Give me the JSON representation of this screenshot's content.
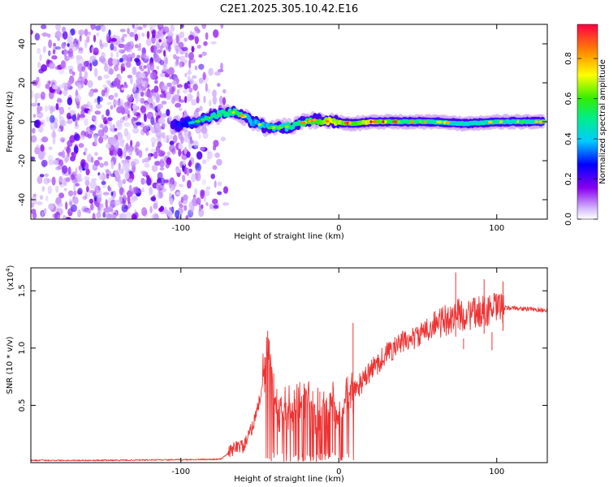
{
  "title": "C2E1.2025.305.10.42.E16",
  "chart_data": [
    {
      "type": "heatmap",
      "xlabel": "Height of straight line (km)",
      "ylabel": "Frequency (Hz)",
      "xlim": [
        -195,
        132
      ],
      "ylim": [
        -50,
        50
      ],
      "xticks": [
        -100,
        0,
        100
      ],
      "yticks": [
        40,
        20,
        0,
        -20,
        -40
      ],
      "xtick_labels": [
        "-100",
        "0",
        "100"
      ],
      "ytick_labels": [
        "40",
        "20",
        "0",
        "-20",
        "-40"
      ],
      "colorbar": {
        "label": "Normalized spectral amplitude",
        "range": [
          0,
          0.97
        ],
        "ticks": [
          "0.0",
          "0.2",
          "0.4",
          "0.6",
          "0.8"
        ],
        "tick_values": [
          0.0,
          0.2,
          0.4,
          0.6,
          0.8
        ]
      },
      "noise_region_km": [
        -195,
        -75
      ],
      "signal_ridge": [
        {
          "x": -105,
          "y": -2,
          "amp": 0.25
        },
        {
          "x": -90,
          "y": 0,
          "amp": 0.35
        },
        {
          "x": -75,
          "y": 4,
          "amp": 0.55
        },
        {
          "x": -65,
          "y": 5,
          "amp": 0.6
        },
        {
          "x": -55,
          "y": 0,
          "amp": 0.45
        },
        {
          "x": -45,
          "y": -3,
          "amp": 0.45
        },
        {
          "x": -35,
          "y": -3,
          "amp": 0.5
        },
        {
          "x": -25,
          "y": -1,
          "amp": 0.6
        },
        {
          "x": -15,
          "y": 1,
          "amp": 0.7
        },
        {
          "x": -5,
          "y": 0,
          "amp": 0.85
        },
        {
          "x": 10,
          "y": -1,
          "amp": 0.7
        },
        {
          "x": 20,
          "y": 0,
          "amp": 0.85
        },
        {
          "x": 40,
          "y": 0,
          "amp": 0.6
        },
        {
          "x": 60,
          "y": 0,
          "amp": 0.55
        },
        {
          "x": 80,
          "y": -1,
          "amp": 0.5
        },
        {
          "x": 100,
          "y": 0,
          "amp": 0.55
        },
        {
          "x": 130,
          "y": 0,
          "amp": 0.5
        }
      ]
    },
    {
      "type": "line",
      "xlabel": "Height of straight line (km)",
      "ylabel": "SNR (10 * v/v)",
      "scale_label": "(x10",
      "scale_exp": "4",
      "scale_close": ")",
      "xlim": [
        -195,
        132
      ],
      "ylim": [
        0,
        1.7
      ],
      "xticks": [
        -100,
        0,
        100
      ],
      "yticks": [
        0.5,
        1.0,
        1.5
      ],
      "xtick_labels": [
        "-100",
        "0",
        "100"
      ],
      "ytick_labels": [
        "0.5",
        "1.0",
        "1.5"
      ],
      "color": "#ee3333",
      "series": [
        {
          "name": "SNR",
          "x": [
            -195,
            -150,
            -100,
            -75,
            -68,
            -65,
            -60,
            -55,
            -50,
            -46,
            -44,
            -40,
            -35,
            -30,
            -25,
            -20,
            -15,
            -10,
            -5,
            0,
            5,
            10,
            15,
            20,
            30,
            40,
            50,
            60,
            70,
            74,
            80,
            85,
            90,
            95,
            100,
            110,
            120,
            132
          ],
          "y": [
            0.02,
            0.02,
            0.025,
            0.03,
            0.1,
            0.15,
            0.14,
            0.3,
            0.55,
            0.9,
            1.0,
            0.45,
            0.5,
            0.4,
            0.55,
            0.6,
            0.45,
            0.5,
            0.6,
            0.4,
            0.55,
            0.65,
            0.7,
            0.8,
            0.95,
            1.05,
            1.1,
            1.2,
            1.25,
            1.3,
            1.28,
            1.3,
            1.32,
            1.33,
            1.35,
            1.35,
            1.34,
            1.33
          ]
        }
      ],
      "spikes": [
        {
          "x": -45,
          "y": 1.15
        },
        {
          "x": -47,
          "y": 0.92
        },
        {
          "x": -38,
          "y": 0.55
        },
        {
          "x": -22,
          "y": 0.69
        },
        {
          "x": -12,
          "y": 0.62
        },
        {
          "x": 9,
          "y": 1.22
        },
        {
          "x": 74,
          "y": 1.66
        },
        {
          "x": 79,
          "y": 0.99
        },
        {
          "x": 92,
          "y": 1.6
        },
        {
          "x": 97,
          "y": 0.98
        },
        {
          "x": 104,
          "y": 1.58
        }
      ]
    }
  ]
}
